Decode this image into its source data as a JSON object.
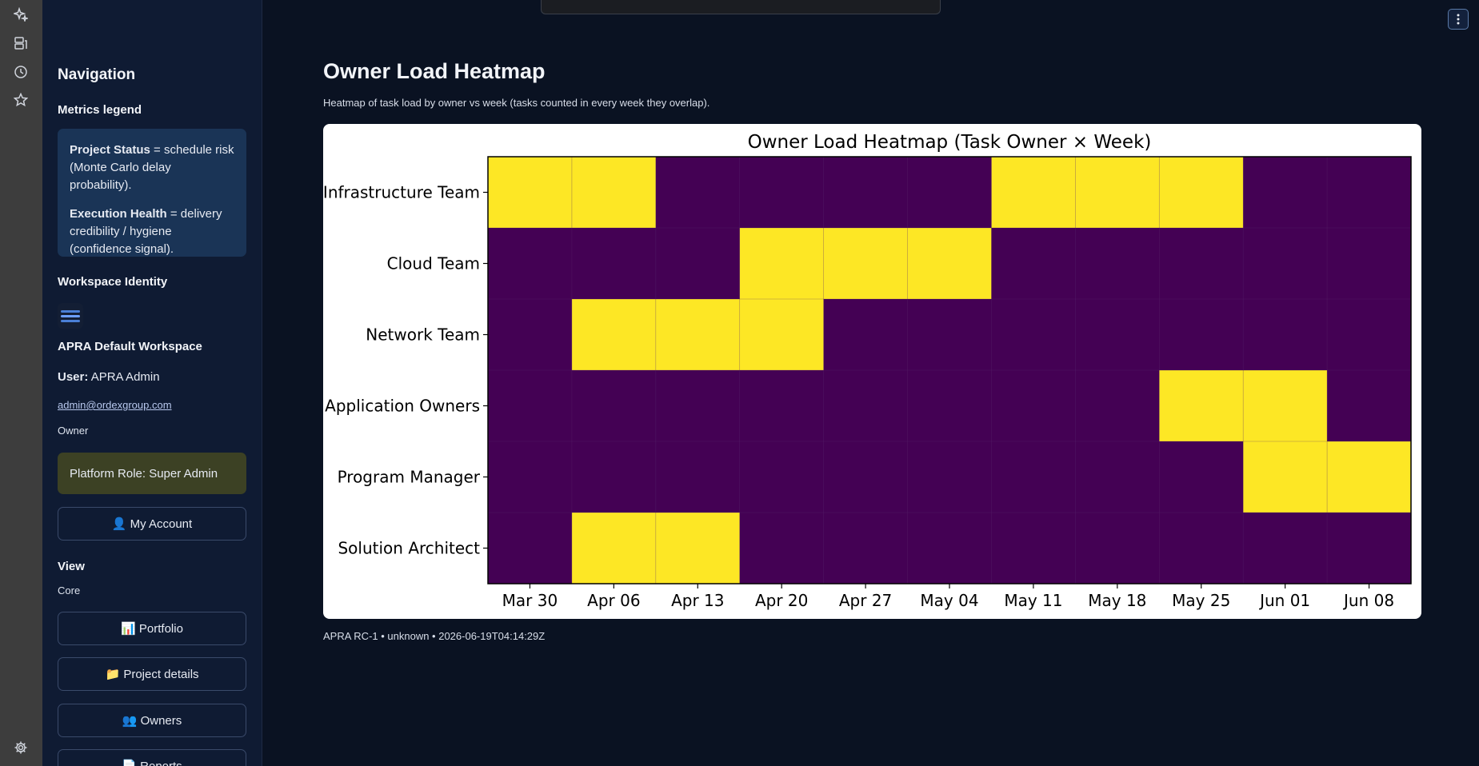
{
  "rail": {
    "icons": [
      "sparkle-icon",
      "database-icon",
      "history-icon",
      "star-icon",
      "gear-icon"
    ]
  },
  "sidebar": {
    "navigation_heading": "Navigation",
    "metrics_legend": {
      "heading": "Metrics legend",
      "project_status_term": "Project Status",
      "project_status_desc": " = schedule risk (Monte Carlo delay probability).",
      "execution_health_term": "Execution Health",
      "execution_health_desc": " = delivery credibility / hygiene (confidence signal)."
    },
    "workspace": {
      "heading": "Workspace Identity",
      "name": "APRA Default Workspace",
      "user_label": "User:",
      "user_name": " APRA Admin",
      "email": "admin@ordexgroup.com",
      "role": "Owner",
      "platform_role": "Platform Role: Super Admin"
    },
    "my_account_button": "👤 My Account",
    "view": {
      "heading": "View",
      "group": "Core",
      "buttons": [
        "📊 Portfolio",
        "📁 Project details",
        "👥 Owners",
        "📄 Reports"
      ]
    }
  },
  "main": {
    "title": "Owner Load Heatmap",
    "caption": "Heatmap of task load by owner vs week (tasks counted in every week they overlap).",
    "footer": "APRA RC-1 • unknown • 2026-06-19T04:14:29Z"
  },
  "colors": {
    "high": "#fde725",
    "low": "#440154",
    "grid": "#5a2a6e"
  },
  "chart_data": {
    "type": "heatmap",
    "title": "Owner Load Heatmap (Task Owner × Week)",
    "x": [
      "Mar 30",
      "Apr 06",
      "Apr 13",
      "Apr 20",
      "Apr 27",
      "May 04",
      "May 11",
      "May 18",
      "May 25",
      "Jun 01",
      "Jun 08"
    ],
    "y": [
      "Infrastructure Team",
      "Cloud Team",
      "Network Team",
      "Application Owners",
      "Program Manager",
      "Solution Architect"
    ],
    "values": [
      [
        1,
        1,
        0,
        0,
        0,
        0,
        1,
        1,
        1,
        0,
        0
      ],
      [
        0,
        0,
        0,
        1,
        1,
        1,
        0,
        0,
        0,
        0,
        0
      ],
      [
        0,
        1,
        1,
        1,
        0,
        0,
        0,
        0,
        0,
        0,
        0
      ],
      [
        0,
        0,
        0,
        0,
        0,
        0,
        0,
        0,
        1,
        1,
        0
      ],
      [
        0,
        0,
        0,
        0,
        0,
        0,
        0,
        0,
        0,
        1,
        1
      ],
      [
        0,
        1,
        1,
        0,
        0,
        0,
        0,
        0,
        0,
        0,
        0
      ]
    ],
    "colormap": "viridis",
    "value_range": [
      0,
      1
    ],
    "grid": true,
    "legend": "none"
  }
}
